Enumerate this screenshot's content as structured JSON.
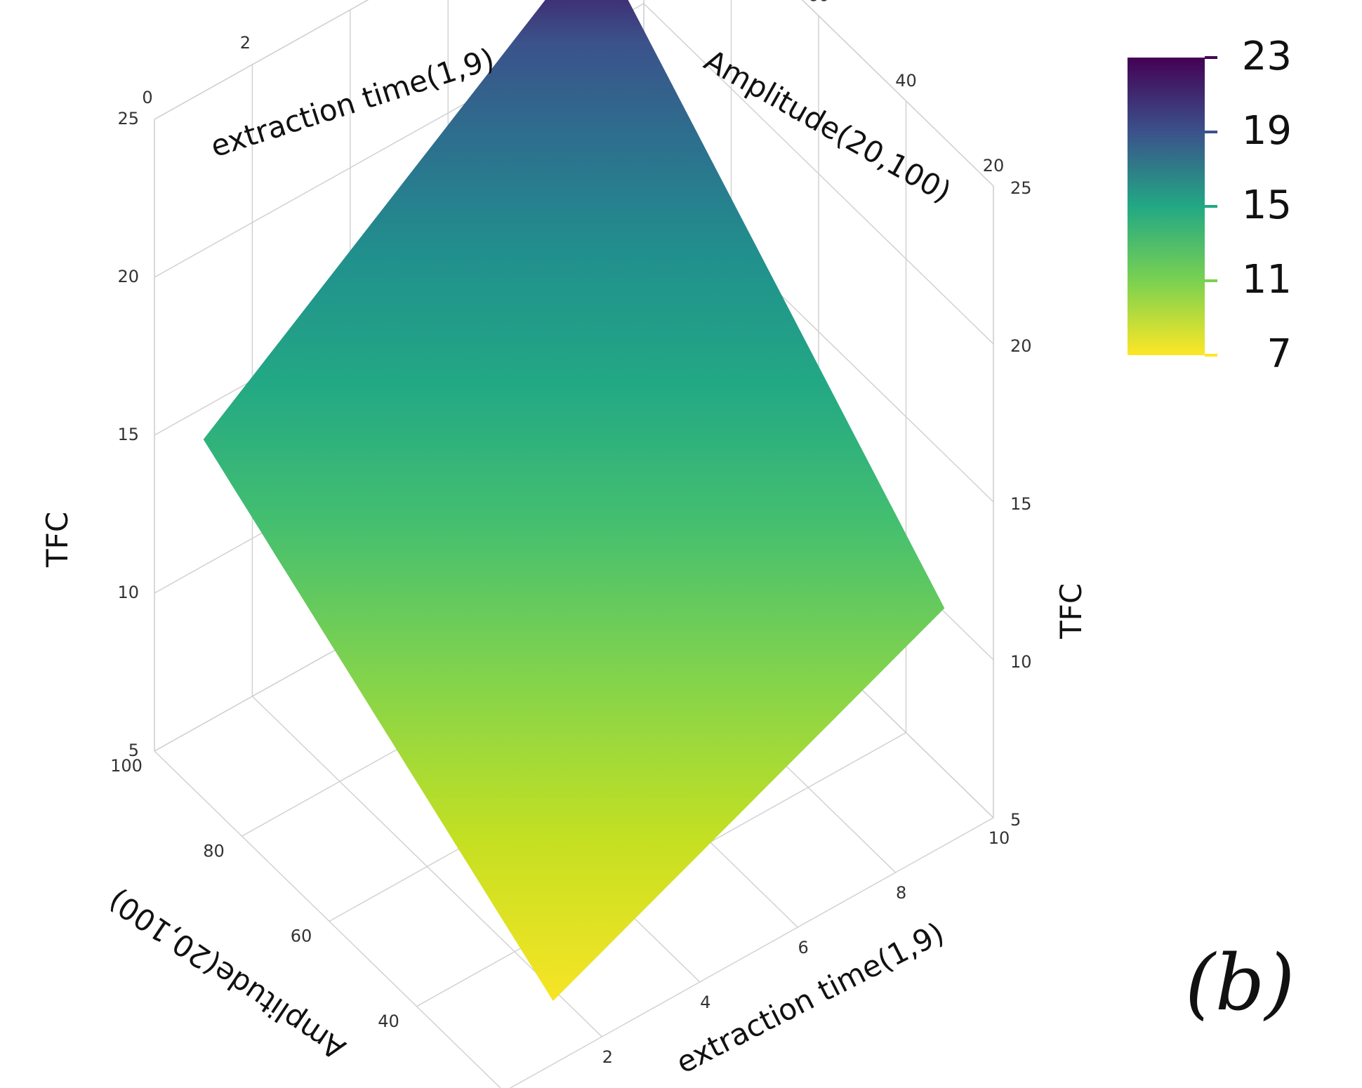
{
  "chart_data": {
    "type": "surface3d",
    "x_axis": {
      "label": "extraction time(1,9)",
      "range": [
        0,
        10
      ],
      "ticks": [
        "0",
        "2",
        "4",
        "6",
        "8",
        "10"
      ]
    },
    "y_axis": {
      "label": "Amplitude(20,100)",
      "range": [
        20,
        100
      ],
      "ticks": [
        "20",
        "40",
        "60",
        "80",
        "100"
      ]
    },
    "z_axis": {
      "label": "TFC",
      "range": [
        5,
        25
      ],
      "ticks": [
        "5",
        "10",
        "15",
        "20",
        "25"
      ]
    },
    "surface_corners": [
      {
        "time": 1,
        "amplitude": 20,
        "TFC": 7
      },
      {
        "time": 9,
        "amplitude": 20,
        "TFC": 12.5
      },
      {
        "time": 1,
        "amplitude": 100,
        "TFC": 14
      },
      {
        "time": 9,
        "amplitude": 100,
        "TFC": 23
      }
    ],
    "colorscale": {
      "name": "viridis",
      "reversed": true,
      "ticks": [
        "23",
        "19",
        "15",
        "11",
        "7"
      ],
      "range": [
        7,
        23
      ]
    },
    "panel_label": "(b)"
  }
}
